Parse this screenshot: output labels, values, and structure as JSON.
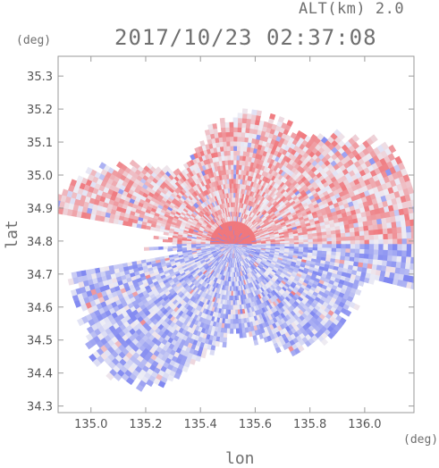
{
  "header": {
    "altitude": "ALT(km) 2.0",
    "datetime": "2017/10/23 02:37:08"
  },
  "axes": {
    "y_unit": "(deg)",
    "x_unit": "(deg)",
    "xlabel": "lon",
    "ylabel": "lat"
  },
  "colors": {
    "positive": "#f26a6a",
    "negative": "#6f7ff0",
    "frame": "#9a9a9a"
  },
  "chart_data": {
    "type": "heatmap",
    "title": "2017/10/23 02:37:08",
    "subtitle": "ALT(km) 2.0",
    "xlabel": "lon",
    "ylabel": "lat",
    "xlim": [
      134.88,
      136.18
    ],
    "ylim": [
      34.28,
      35.36
    ],
    "x_ticks": [
      "135.0",
      "135.2",
      "135.4",
      "135.6",
      "135.8",
      "136.0"
    ],
    "x_tick_values": [
      135.0,
      135.2,
      135.4,
      135.6,
      135.8,
      136.0
    ],
    "y_ticks": [
      "35.3",
      "35.2",
      "35.1",
      "35.0",
      "34.9",
      "34.8",
      "34.7",
      "34.6",
      "34.5",
      "34.4",
      "34.3"
    ],
    "y_tick_values": [
      35.3,
      35.2,
      35.1,
      35.0,
      34.9,
      34.8,
      34.7,
      34.6,
      34.5,
      34.4,
      34.3
    ],
    "radar_center": [
      135.52,
      34.79
    ],
    "grid": false,
    "colormap": "blue (negative) – white – red (positive) radial velocity"
  }
}
